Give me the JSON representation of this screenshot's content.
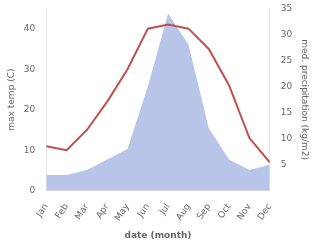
{
  "chart_data": {
    "type": "line",
    "categories": [
      "Jan",
      "Feb",
      "Mar",
      "Apr",
      "May",
      "Jun",
      "Jul",
      "Aug",
      "Sep",
      "Oct",
      "Nov",
      "Dec"
    ],
    "series": [
      {
        "type": "area",
        "color": "#b8c4e8",
        "axis": "y2",
        "values": [
          3,
          3,
          4,
          6,
          8,
          20,
          34,
          28,
          12,
          6,
          4,
          5
        ]
      },
      {
        "type": "line",
        "color": "#c0504d",
        "values": [
          11,
          10,
          15,
          22,
          30,
          40,
          41,
          40,
          35,
          26,
          13,
          7
        ]
      }
    ],
    "xlabel": "date (month)",
    "ylabel": "max temp (C)",
    "y2label": "med. precipitation (kg/m2)",
    "ylim": [
      0,
      45
    ],
    "yticks": [
      0,
      10,
      20,
      30,
      40
    ],
    "y2lim": [
      0,
      35
    ],
    "y2ticks": [
      5,
      10,
      15,
      20,
      25,
      30,
      35
    ],
    "grid": false
  }
}
